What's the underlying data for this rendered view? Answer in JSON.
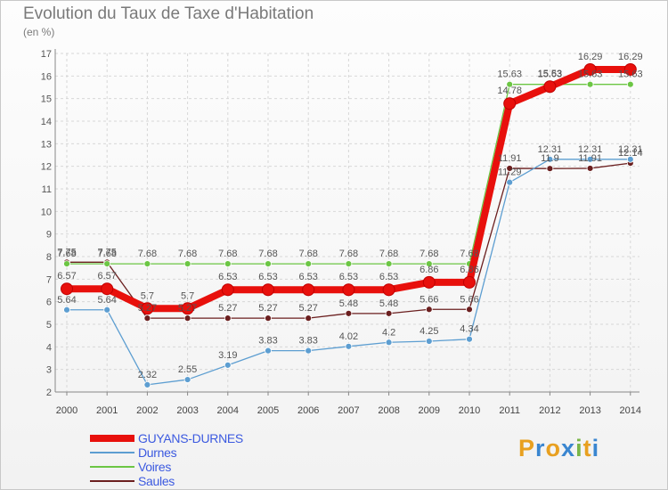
{
  "title": "Evolution du Taux de Taxe d'Habitation",
  "subtitle": "(en %)",
  "brand": {
    "name": "Proxiti",
    "letters": [
      "P",
      "r",
      "o",
      "x",
      "i",
      "t",
      "i"
    ],
    "colors": [
      "#e8a020",
      "#3a86d0",
      "#e8a020",
      "#3a86d0",
      "#7ab648",
      "#e8a020",
      "#3a86d0"
    ]
  },
  "chart_data": {
    "type": "line",
    "x": [
      "2000",
      "2001",
      "2002",
      "2003",
      "2004",
      "2005",
      "2006",
      "2007",
      "2008",
      "2009",
      "2010",
      "2011",
      "2012",
      "2013",
      "2014"
    ],
    "ylim": [
      2,
      17
    ],
    "yticks": [
      "2",
      "3",
      "4",
      "5",
      "6",
      "7",
      "8",
      "9",
      "10",
      "11",
      "12",
      "13",
      "14",
      "15",
      "16",
      "17"
    ],
    "grid": true,
    "legend_position": "bottom-left",
    "series": [
      {
        "name": "Saules",
        "color": "#6b1f1f",
        "values": [
          7.75,
          7.75,
          5.27,
          5.27,
          5.27,
          5.27,
          5.27,
          5.48,
          5.48,
          5.66,
          5.66,
          11.91,
          11.9,
          11.91,
          12.14
        ],
        "labels": [
          "7.75",
          "7.75",
          "5.27",
          "5.27",
          "5.27",
          "5.27",
          "5.27",
          "5.48",
          "5.48",
          "5.66",
          "5.66",
          "11.91",
          "11.9",
          "11.91",
          "12.14"
        ]
      },
      {
        "name": "Durnes",
        "color": "#5d9ed1",
        "values": [
          5.64,
          5.64,
          2.32,
          2.55,
          3.19,
          3.83,
          3.83,
          4.02,
          4.2,
          4.25,
          4.34,
          11.29,
          12.31,
          12.31,
          12.31
        ],
        "labels": [
          "5.64",
          "5.64",
          "2.32",
          "2.55",
          "3.19",
          "3.83",
          "3.83",
          "4.02",
          "4.2",
          "4.25",
          "4.34",
          "11.29",
          "12.31",
          "12.31",
          "12.31"
        ]
      },
      {
        "name": "Voires",
        "color": "#6cc644",
        "values": [
          7.68,
          7.68,
          7.68,
          7.68,
          7.68,
          7.68,
          7.68,
          7.68,
          7.68,
          7.68,
          7.68,
          15.63,
          15.63,
          15.63,
          15.63
        ],
        "labels": [
          "7.68",
          "7.68",
          "7.68",
          "7.68",
          "7.68",
          "7.68",
          "7.68",
          "7.68",
          "7.68",
          "7.68",
          "7.68",
          "15.63",
          "15.63",
          "15.63",
          "15.63"
        ]
      },
      {
        "name": "GUYANS-DURNES",
        "color": "#e8100c",
        "values": [
          6.57,
          6.57,
          5.7,
          5.7,
          6.53,
          6.53,
          6.53,
          6.53,
          6.53,
          6.86,
          6.86,
          14.78,
          15.53,
          16.29,
          16.29
        ],
        "labels": [
          "6.57",
          "6.57",
          "5.7",
          "5.7",
          "6.53",
          "6.53",
          "6.53",
          "6.53",
          "6.53",
          "6.86",
          "6.86",
          "14.78",
          "15.53",
          "16.29",
          "16.29"
        ]
      }
    ],
    "legend_order": [
      "GUYANS-DURNES",
      "Durnes",
      "Voires",
      "Saules"
    ]
  }
}
